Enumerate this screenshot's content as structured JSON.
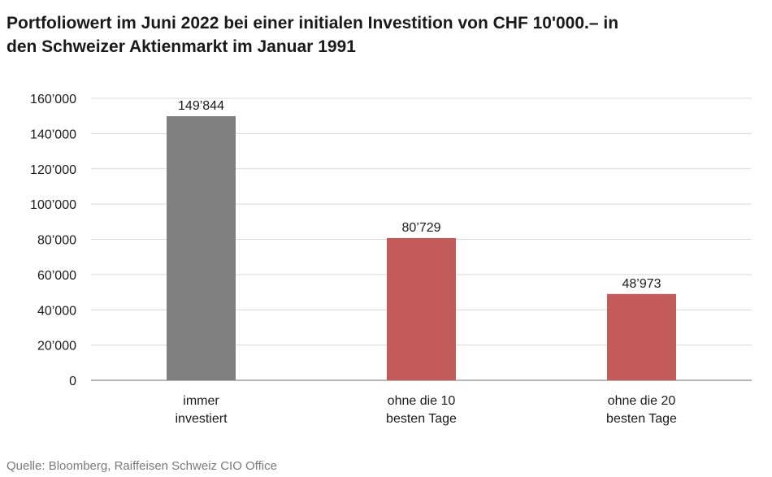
{
  "title_lines": [
    "Portfoliowert im Juni 2022 bei einer initialen Investition von CHF 10'000.– in",
    "den Schweizer Aktienmarkt im Januar 1991"
  ],
  "source": "Quelle: Bloomberg, Raiffeisen Schweiz CIO Office",
  "chart_data": {
    "type": "bar",
    "title": "Portfoliowert im Juni 2022 bei einer initialen Investition von CHF 10'000.– in den Schweizer Aktienmarkt im Januar 1991",
    "categories": [
      [
        "immer",
        "investiert"
      ],
      [
        "ohne die 10",
        "besten Tage"
      ],
      [
        "ohne die 20",
        "besten Tage"
      ]
    ],
    "values": [
      149844,
      80729,
      48973
    ],
    "value_labels": [
      "149’844",
      "80’729",
      "48’973"
    ],
    "bar_colors": [
      "#808080",
      "#c45b5b",
      "#c45b5b"
    ],
    "yticks": [
      0,
      20000,
      40000,
      60000,
      80000,
      100000,
      120000,
      140000,
      160000
    ],
    "ytick_labels": [
      "0",
      "20’000",
      "40’000",
      "60’000",
      "80’000",
      "100’000",
      "120’000",
      "140’000",
      "160’000"
    ],
    "ylim": [
      0,
      160000
    ],
    "grid": true,
    "xlabel": "",
    "ylabel": ""
  },
  "colors": {
    "grid": "#d9d9d9",
    "axis": "#8c8c8c",
    "text": "#1a1a1a",
    "source_text": "#7a7a7a"
  }
}
